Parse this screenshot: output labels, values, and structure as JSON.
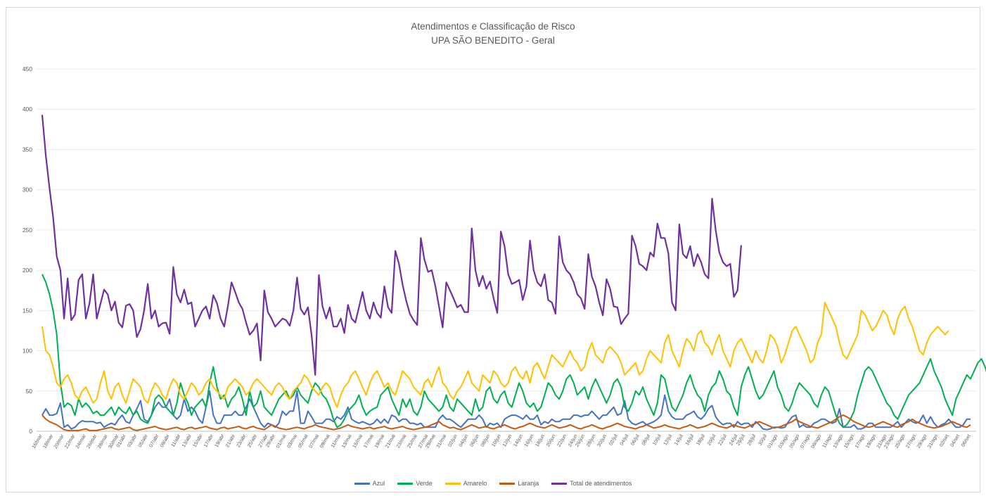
{
  "chart_data": {
    "type": "line",
    "title": "Atendimentos e Classificação de Risco",
    "subtitle": "UPA SÃO BENEDITO - Geral",
    "ylim": [
      0,
      450
    ],
    "yticks": [
      0,
      50,
      100,
      150,
      200,
      250,
      300,
      350,
      400,
      450
    ],
    "grid": true,
    "legend_position": "bottom",
    "x_labels": [
      "16/mar",
      "18/mar",
      "20/mar",
      "22/mar",
      "24/mar",
      "26/mar",
      "28/mar",
      "30/mar",
      "01/abr",
      "03/abr",
      "05/abr",
      "07/abr",
      "09/abr",
      "11/abr",
      "13/abr",
      "15/abr",
      "17/abr",
      "19/abr",
      "21/abr",
      "23/abr",
      "25/abr",
      "27/abr",
      "29/abr",
      "01/mai",
      "03/mai",
      "05/mai",
      "07/mai",
      "09/mai",
      "11/mai",
      "13/mai",
      "15/mai",
      "17/mai",
      "19/mai",
      "21/mai",
      "23/mai",
      "25/mai",
      "27/mai",
      "29/mai",
      "31/mai",
      "02/jun",
      "04/jun",
      "06/jun",
      "08/jun",
      "10/jun",
      "12/jun",
      "14/jun",
      "16/jun",
      "18/jun",
      "20/jun",
      "22/jun",
      "24/jun",
      "26/jun",
      "28/jun",
      "30/jun",
      "02/jul",
      "04/jul",
      "06/jul",
      "08/jul",
      "10/jul",
      "12/jul",
      "14/jul",
      "16/jul",
      "18/jul",
      "20/jul",
      "22/jul",
      "24/jul",
      "26/jul",
      "28/jul",
      "30/jul",
      "01/ago",
      "03/ago",
      "05/ago",
      "07/ago",
      "09/ago",
      "11/ago",
      "13/ago",
      "15/ago",
      "17/ago",
      "19/ago",
      "21/ago",
      "23/ago",
      "25/ago",
      "27/ago",
      "29/ago",
      "31/ago",
      "02/set",
      "04/set",
      "06/set"
    ],
    "series": [
      {
        "name": "Azul",
        "color": "#4472c4",
        "values": [
          20,
          28,
          20,
          20,
          22,
          35,
          5,
          8,
          3,
          5,
          10,
          13,
          12,
          12,
          12,
          10,
          11,
          5,
          8,
          10,
          8,
          15,
          20,
          12,
          10,
          20,
          28,
          38,
          15,
          12,
          20,
          30,
          36,
          30,
          30,
          40,
          20,
          15,
          20,
          40,
          25,
          30,
          25,
          15,
          10,
          30,
          50,
          20,
          10,
          10,
          20,
          20,
          20,
          25,
          20,
          20,
          30,
          40,
          30,
          20,
          10,
          5,
          10,
          8,
          5,
          10,
          25,
          20,
          25,
          25,
          50,
          10,
          10,
          25,
          18,
          10,
          10,
          10,
          15,
          15,
          12,
          18,
          15,
          20,
          30,
          15,
          12,
          10,
          12,
          10,
          8,
          10,
          15,
          10,
          15,
          10,
          20,
          18,
          12,
          15,
          15,
          10,
          10,
          8,
          10,
          5,
          5,
          5,
          5,
          15,
          20,
          15,
          15,
          12,
          8,
          5,
          10,
          15,
          15,
          15,
          20,
          15,
          5,
          10,
          8,
          10,
          5,
          15,
          18,
          20,
          20,
          18,
          15,
          20,
          15,
          15,
          20,
          8,
          12,
          10,
          15,
          12,
          12,
          15,
          15,
          15,
          20,
          20,
          18,
          20,
          20,
          25,
          20,
          15,
          20,
          20,
          25,
          30,
          20,
          22,
          38,
          15,
          10,
          8,
          10,
          12,
          8,
          10,
          12,
          15,
          20,
          45,
          25,
          18,
          15,
          15,
          15,
          20,
          22,
          25,
          18,
          15,
          20,
          28,
          32,
          18,
          12,
          8,
          10,
          10,
          5,
          12,
          8,
          10,
          10,
          5,
          12,
          8,
          3,
          2,
          3,
          5,
          5,
          4,
          5,
          12,
          18,
          20,
          5,
          8,
          5,
          5,
          10,
          12,
          15,
          15,
          12,
          10,
          12,
          28,
          5,
          5,
          5,
          8,
          3,
          3,
          5,
          10,
          10,
          5,
          5,
          5,
          5,
          5,
          8,
          12,
          5,
          10,
          15,
          12,
          10,
          12,
          20,
          10,
          18,
          10,
          5,
          8,
          10,
          15,
          10,
          5,
          5,
          8,
          15,
          15
        ]
      },
      {
        "name": "Verde",
        "color": "#00b050",
        "values": [
          195,
          185,
          170,
          150,
          120,
          60,
          30,
          35,
          32,
          20,
          40,
          30,
          35,
          30,
          22,
          25,
          20,
          20,
          25,
          30,
          20,
          30,
          25,
          22,
          30,
          20,
          25,
          15,
          12,
          10,
          20,
          40,
          45,
          40,
          30,
          25,
          20,
          35,
          60,
          45,
          35,
          20,
          30,
          35,
          40,
          30,
          60,
          80,
          55,
          40,
          45,
          30,
          40,
          45,
          55,
          40,
          20,
          50,
          30,
          35,
          50,
          30,
          25,
          20,
          30,
          40,
          45,
          50,
          40,
          45,
          55,
          45,
          40,
          35,
          50,
          60,
          55,
          45,
          40,
          30,
          15,
          5,
          8,
          15,
          25,
          30,
          35,
          45,
          30,
          20,
          25,
          28,
          30,
          45,
          50,
          55,
          40,
          30,
          20,
          40,
          30,
          40,
          25,
          20,
          30,
          50,
          40,
          35,
          30,
          25,
          30,
          45,
          30,
          25,
          40,
          35,
          30,
          25,
          20,
          40,
          25,
          30,
          50,
          55,
          40,
          35,
          45,
          50,
          35,
          30,
          45,
          60,
          50,
          35,
          30,
          35,
          25,
          30,
          45,
          60,
          55,
          45,
          40,
          50,
          65,
          70,
          60,
          45,
          50,
          55,
          40,
          55,
          65,
          55,
          45,
          35,
          45,
          60,
          65,
          55,
          30,
          25,
          35,
          50,
          45,
          55,
          40,
          30,
          20,
          35,
          70,
          65,
          45,
          30,
          25,
          35,
          45,
          60,
          70,
          55,
          45,
          40,
          25,
          45,
          55,
          60,
          75,
          65,
          50,
          45,
          30,
          20,
          55,
          70,
          80,
          65,
          50,
          40,
          45,
          55,
          65,
          75,
          55,
          45,
          30,
          25,
          35,
          50,
          60,
          55,
          50,
          45,
          35,
          30,
          45,
          55,
          50,
          35,
          20,
          10,
          5,
          8,
          15,
          25,
          45,
          60,
          75,
          80,
          75,
          65,
          55,
          45,
          35,
          30,
          20,
          15,
          25,
          35,
          45,
          50,
          55,
          60,
          70,
          80,
          90,
          75,
          65,
          55,
          40,
          30,
          20,
          40,
          50,
          60,
          70,
          65,
          75,
          85,
          90,
          80,
          65,
          55,
          45,
          40,
          35,
          45,
          55,
          70,
          60
        ]
      },
      {
        "name": "Amarelo",
        "color": "#ffc000",
        "values": [
          130,
          100,
          95,
          80,
          60,
          55,
          65,
          70,
          60,
          45,
          40,
          50,
          55,
          45,
          35,
          40,
          60,
          75,
          50,
          40,
          55,
          60,
          45,
          35,
          50,
          65,
          60,
          55,
          40,
          35,
          50,
          60,
          55,
          45,
          40,
          55,
          65,
          60,
          45,
          40,
          50,
          60,
          55,
          45,
          50,
          60,
          65,
          55,
          50,
          45,
          40,
          55,
          60,
          65,
          60,
          55,
          45,
          50,
          60,
          65,
          60,
          55,
          50,
          45,
          55,
          60,
          55,
          45,
          40,
          50,
          55,
          60,
          70,
          65,
          55,
          50,
          45,
          55,
          60,
          55,
          40,
          30,
          45,
          55,
          60,
          70,
          75,
          65,
          55,
          45,
          60,
          70,
          75,
          65,
          55,
          60,
          50,
          45,
          60,
          75,
          70,
          65,
          55,
          50,
          45,
          60,
          65,
          55,
          70,
          80,
          60,
          55,
          45,
          40,
          50,
          55,
          65,
          75,
          60,
          55,
          50,
          70,
          65,
          60,
          75,
          70,
          60,
          55,
          60,
          75,
          80,
          70,
          65,
          75,
          60,
          80,
          85,
          75,
          65,
          80,
          95,
          90,
          85,
          80,
          90,
          100,
          90,
          85,
          75,
          80,
          100,
          110,
          95,
          90,
          85,
          100,
          105,
          100,
          95,
          85,
          70,
          75,
          80,
          85,
          70,
          75,
          90,
          100,
          95,
          90,
          85,
          110,
          120,
          100,
          90,
          80,
          100,
          115,
          110,
          100,
          120,
          125,
          110,
          105,
          95,
          110,
          120,
          100,
          90,
          80,
          100,
          110,
          115,
          105,
          95,
          85,
          100,
          90,
          85,
          100,
          120,
          115,
          105,
          85,
          95,
          110,
          125,
          130,
          120,
          110,
          100,
          85,
          90,
          110,
          120,
          160,
          150,
          140,
          130,
          110,
          95,
          90,
          100,
          110,
          120,
          150,
          145,
          135,
          125,
          130,
          140,
          150,
          145,
          130,
          120,
          140,
          150,
          155,
          140,
          130,
          115,
          100,
          95,
          110,
          120,
          125,
          130,
          125,
          120,
          125
        ]
      },
      {
        "name": "Laranja",
        "color": "#c55a11",
        "values": [
          20,
          15,
          12,
          10,
          8,
          5,
          2,
          1,
          1,
          1,
          1,
          2,
          3,
          1,
          1,
          1,
          2,
          3,
          4,
          5,
          3,
          2,
          3,
          4,
          5,
          2,
          1,
          2,
          3,
          4,
          5,
          6,
          4,
          3,
          2,
          3,
          4,
          5,
          3,
          2,
          4,
          5,
          3,
          4,
          5,
          6,
          4,
          3,
          2,
          4,
          5,
          3,
          4,
          5,
          6,
          4,
          3,
          5,
          6,
          4,
          3,
          2,
          5,
          8,
          6,
          4,
          3,
          2,
          3,
          4,
          5,
          4,
          3,
          5,
          6,
          8,
          6,
          5,
          4,
          3,
          2,
          3,
          4,
          6,
          8,
          6,
          5,
          4,
          3,
          4,
          5,
          3,
          4,
          5,
          6,
          4,
          3,
          4,
          5,
          6,
          4,
          3,
          2,
          3,
          4,
          5,
          6,
          8,
          10,
          12,
          8,
          6,
          4,
          5,
          3,
          2,
          4,
          6,
          8,
          6,
          4,
          5,
          6,
          4,
          3,
          5,
          6,
          8,
          6,
          4,
          3,
          5,
          6,
          8,
          10,
          8,
          6,
          5,
          4,
          6,
          8,
          6,
          4,
          5,
          6,
          8,
          6,
          4,
          3,
          5,
          6,
          8,
          6,
          4,
          3,
          5,
          6,
          8,
          10,
          8,
          6,
          5,
          4,
          3,
          5,
          6,
          8,
          6,
          4,
          5,
          6,
          8,
          6,
          5,
          4,
          3,
          5,
          6,
          8,
          6,
          4,
          5,
          6,
          8,
          10,
          8,
          6,
          5,
          4,
          6,
          8,
          6,
          5,
          4,
          6,
          8,
          10,
          12,
          10,
          8,
          6,
          4,
          5,
          6,
          8,
          10,
          12,
          15,
          12,
          10,
          8,
          6,
          5,
          4,
          6,
          8,
          10,
          12,
          15,
          18,
          20,
          18,
          15,
          12,
          10,
          8,
          6,
          5,
          6,
          8,
          10,
          12,
          10,
          8,
          6,
          5,
          8,
          10,
          12,
          15,
          12,
          10,
          8,
          6,
          5,
          4,
          5,
          6,
          8,
          10,
          12,
          10,
          8,
          6,
          5,
          8
        ]
      },
      {
        "name": "Total de atendimentos",
        "color": "#7030a0",
        "values": [
          393,
          342,
          302,
          266,
          217,
          200,
          140,
          190,
          138,
          145,
          188,
          195,
          140,
          159,
          195,
          140,
          158,
          176,
          170,
          150,
          161,
          135,
          129,
          156,
          158,
          150,
          117,
          127,
          150,
          183,
          140,
          150,
          130,
          134,
          135,
          121,
          204,
          170,
          160,
          176,
          158,
          160,
          130,
          140,
          150,
          155,
          140,
          169,
          159,
          140,
          130,
          155,
          185,
          173,
          160,
          152,
          135,
          120,
          125,
          134,
          88,
          175,
          148,
          140,
          130,
          135,
          140,
          138,
          131,
          150,
          191,
          152,
          145,
          154,
          119,
          70,
          194,
          155,
          140,
          154,
          130,
          130,
          140,
          122,
          157,
          140,
          135,
          154,
          173,
          150,
          140,
          160,
          147,
          141,
          180,
          154,
          147,
          224,
          208,
          182,
          162,
          146,
          138,
          132,
          240,
          213,
          198,
          200,
          180,
          155,
          129,
          185,
          175,
          165,
          154,
          157,
          148,
          148,
          252,
          200,
          180,
          193,
          177,
          186,
          165,
          147,
          248,
          230,
          195,
          183,
          185,
          188,
          163,
          180,
          237,
          200,
          185,
          180,
          195,
          163,
          160,
          146,
          242,
          210,
          200,
          195,
          185,
          170,
          165,
          152,
          220,
          192,
          180,
          160,
          144,
          189,
          177,
          155,
          154,
          133,
          140,
          146,
          243,
          230,
          208,
          205,
          200,
          222,
          217,
          258,
          240,
          240,
          221,
          160,
          150,
          257,
          220,
          215,
          230,
          205,
          220,
          210,
          195,
          190,
          289,
          250,
          222,
          210,
          205,
          208,
          167,
          175,
          231
        ]
      }
    ]
  }
}
